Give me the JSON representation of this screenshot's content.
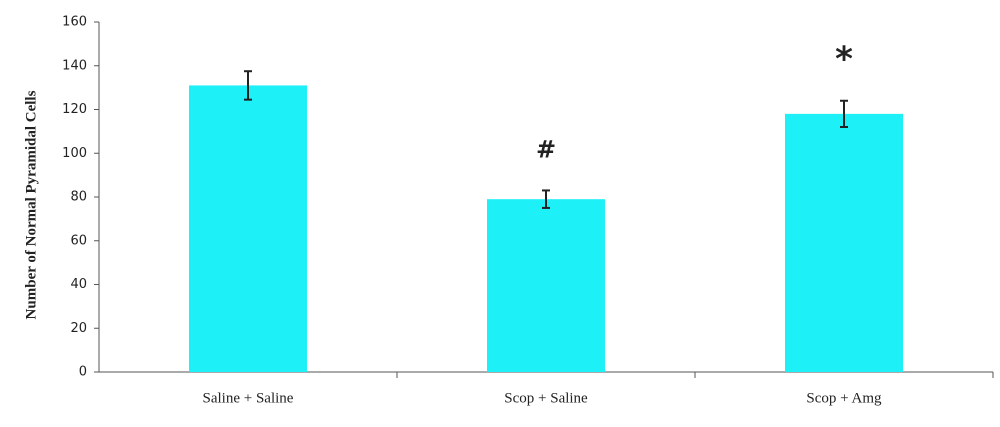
{
  "chart_data": {
    "type": "bar",
    "y_label": "Number of Normal Pyramidal Cells",
    "categories": [
      "Saline + Saline",
      "Scop + Saline",
      "Scop + Amg"
    ],
    "values": [
      131,
      79,
      118
    ],
    "errors": [
      6.5,
      4,
      6
    ],
    "annotations": [
      null,
      "#",
      "*"
    ],
    "color": "#1ef0f7",
    "ylim": [
      0,
      160
    ],
    "yticks": [
      0,
      20,
      40,
      60,
      80,
      100,
      120,
      140,
      160
    ],
    "grid": false
  }
}
